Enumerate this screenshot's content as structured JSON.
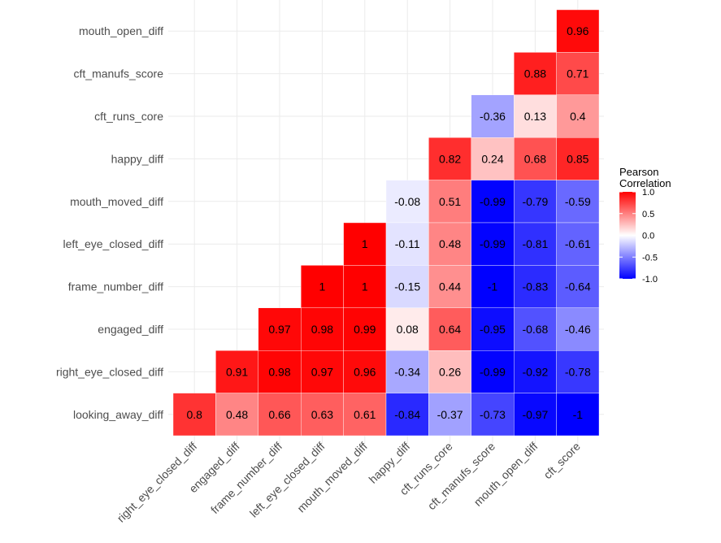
{
  "chart_data": {
    "type": "heatmap",
    "title": "",
    "xlabel": "",
    "ylabel": "",
    "x_categories": [
      "right_eye_closed_diff",
      "engaged_diff",
      "frame_number_diff",
      "left_eye_closed_diff",
      "mouth_moved_diff",
      "happy_diff",
      "cft_runs_core",
      "cft_manufs_score",
      "mouth_open_diff",
      "cft_score"
    ],
    "y_categories": [
      "mouth_open_diff",
      "cft_manufs_score",
      "cft_runs_core",
      "happy_diff",
      "mouth_moved_diff",
      "left_eye_closed_diff",
      "frame_number_diff",
      "engaged_diff",
      "right_eye_closed_diff",
      "looking_away_diff"
    ],
    "cells": [
      {
        "x": "cft_score",
        "y": "mouth_open_diff",
        "value": 0.96,
        "label": "0.96"
      },
      {
        "x": "mouth_open_diff",
        "y": "cft_manufs_score",
        "value": 0.88,
        "label": "0.88"
      },
      {
        "x": "cft_score",
        "y": "cft_manufs_score",
        "value": 0.71,
        "label": "0.71"
      },
      {
        "x": "cft_manufs_score",
        "y": "cft_runs_core",
        "value": -0.36,
        "label": "-0.36"
      },
      {
        "x": "mouth_open_diff",
        "y": "cft_runs_core",
        "value": 0.13,
        "label": "0.13"
      },
      {
        "x": "cft_score",
        "y": "cft_runs_core",
        "value": 0.4,
        "label": "0.4"
      },
      {
        "x": "cft_runs_core",
        "y": "happy_diff",
        "value": 0.82,
        "label": "0.82"
      },
      {
        "x": "cft_manufs_score",
        "y": "happy_diff",
        "value": 0.24,
        "label": "0.24"
      },
      {
        "x": "mouth_open_diff",
        "y": "happy_diff",
        "value": 0.68,
        "label": "0.68"
      },
      {
        "x": "cft_score",
        "y": "happy_diff",
        "value": 0.85,
        "label": "0.85"
      },
      {
        "x": "happy_diff",
        "y": "mouth_moved_diff",
        "value": -0.08,
        "label": "-0.08"
      },
      {
        "x": "cft_runs_core",
        "y": "mouth_moved_diff",
        "value": 0.51,
        "label": "0.51"
      },
      {
        "x": "cft_manufs_score",
        "y": "mouth_moved_diff",
        "value": -0.99,
        "label": "-0.99"
      },
      {
        "x": "mouth_open_diff",
        "y": "mouth_moved_diff",
        "value": -0.79,
        "label": "-0.79"
      },
      {
        "x": "cft_score",
        "y": "mouth_moved_diff",
        "value": -0.59,
        "label": "-0.59"
      },
      {
        "x": "mouth_moved_diff",
        "y": "left_eye_closed_diff",
        "value": 1,
        "label": "1"
      },
      {
        "x": "happy_diff",
        "y": "left_eye_closed_diff",
        "value": -0.11,
        "label": "-0.11"
      },
      {
        "x": "cft_runs_core",
        "y": "left_eye_closed_diff",
        "value": 0.48,
        "label": "0.48"
      },
      {
        "x": "cft_manufs_score",
        "y": "left_eye_closed_diff",
        "value": -0.99,
        "label": "-0.99"
      },
      {
        "x": "mouth_open_diff",
        "y": "left_eye_closed_diff",
        "value": -0.81,
        "label": "-0.81"
      },
      {
        "x": "cft_score",
        "y": "left_eye_closed_diff",
        "value": -0.61,
        "label": "-0.61"
      },
      {
        "x": "left_eye_closed_diff",
        "y": "frame_number_diff",
        "value": 1,
        "label": "1"
      },
      {
        "x": "mouth_moved_diff",
        "y": "frame_number_diff",
        "value": 1,
        "label": "1"
      },
      {
        "x": "happy_diff",
        "y": "frame_number_diff",
        "value": -0.15,
        "label": "-0.15"
      },
      {
        "x": "cft_runs_core",
        "y": "frame_number_diff",
        "value": 0.44,
        "label": "0.44"
      },
      {
        "x": "cft_manufs_score",
        "y": "frame_number_diff",
        "value": -1,
        "label": "-1"
      },
      {
        "x": "mouth_open_diff",
        "y": "frame_number_diff",
        "value": -0.83,
        "label": "-0.83"
      },
      {
        "x": "cft_score",
        "y": "frame_number_diff",
        "value": -0.64,
        "label": "-0.64"
      },
      {
        "x": "frame_number_diff",
        "y": "engaged_diff",
        "value": 0.97,
        "label": "0.97"
      },
      {
        "x": "left_eye_closed_diff",
        "y": "engaged_diff",
        "value": 0.98,
        "label": "0.98"
      },
      {
        "x": "mouth_moved_diff",
        "y": "engaged_diff",
        "value": 0.99,
        "label": "0.99"
      },
      {
        "x": "happy_diff",
        "y": "engaged_diff",
        "value": 0.08,
        "label": "0.08"
      },
      {
        "x": "cft_runs_core",
        "y": "engaged_diff",
        "value": 0.64,
        "label": "0.64"
      },
      {
        "x": "cft_manufs_score",
        "y": "engaged_diff",
        "value": -0.95,
        "label": "-0.95"
      },
      {
        "x": "mouth_open_diff",
        "y": "engaged_diff",
        "value": -0.68,
        "label": "-0.68"
      },
      {
        "x": "cft_score",
        "y": "engaged_diff",
        "value": -0.46,
        "label": "-0.46"
      },
      {
        "x": "engaged_diff",
        "y": "right_eye_closed_diff",
        "value": 0.91,
        "label": "0.91"
      },
      {
        "x": "frame_number_diff",
        "y": "right_eye_closed_diff",
        "value": 0.98,
        "label": "0.98"
      },
      {
        "x": "left_eye_closed_diff",
        "y": "right_eye_closed_diff",
        "value": 0.97,
        "label": "0.97"
      },
      {
        "x": "mouth_moved_diff",
        "y": "right_eye_closed_diff",
        "value": 0.96,
        "label": "0.96"
      },
      {
        "x": "happy_diff",
        "y": "right_eye_closed_diff",
        "value": -0.34,
        "label": "-0.34"
      },
      {
        "x": "cft_runs_core",
        "y": "right_eye_closed_diff",
        "value": 0.26,
        "label": "0.26"
      },
      {
        "x": "cft_manufs_score",
        "y": "right_eye_closed_diff",
        "value": -0.99,
        "label": "-0.99"
      },
      {
        "x": "mouth_open_diff",
        "y": "right_eye_closed_diff",
        "value": -0.92,
        "label": "-0.92"
      },
      {
        "x": "cft_score",
        "y": "right_eye_closed_diff",
        "value": -0.78,
        "label": "-0.78"
      },
      {
        "x": "right_eye_closed_diff",
        "y": "looking_away_diff",
        "value": 0.8,
        "label": "0.8"
      },
      {
        "x": "engaged_diff",
        "y": "looking_away_diff",
        "value": 0.48,
        "label": "0.48"
      },
      {
        "x": "frame_number_diff",
        "y": "looking_away_diff",
        "value": 0.66,
        "label": "0.66"
      },
      {
        "x": "left_eye_closed_diff",
        "y": "looking_away_diff",
        "value": 0.63,
        "label": "0.63"
      },
      {
        "x": "mouth_moved_diff",
        "y": "looking_away_diff",
        "value": 0.61,
        "label": "0.61"
      },
      {
        "x": "happy_diff",
        "y": "looking_away_diff",
        "value": -0.84,
        "label": "-0.84"
      },
      {
        "x": "cft_runs_core",
        "y": "looking_away_diff",
        "value": -0.37,
        "label": "-0.37"
      },
      {
        "x": "cft_manufs_score",
        "y": "looking_away_diff",
        "value": -0.73,
        "label": "-0.73"
      },
      {
        "x": "mouth_open_diff",
        "y": "looking_away_diff",
        "value": -0.97,
        "label": "-0.97"
      },
      {
        "x": "cft_score",
        "y": "looking_away_diff",
        "value": -1,
        "label": "-1"
      }
    ],
    "value_range": [
      -1,
      1
    ],
    "grid": true,
    "legend": {
      "title_lines": [
        "Pearson",
        "Correlation"
      ],
      "placement": "right",
      "ticks": [
        {
          "value": 1.0,
          "label": "1.0"
        },
        {
          "value": 0.5,
          "label": "0.5"
        },
        {
          "value": 0.0,
          "label": "0.0"
        },
        {
          "value": -0.5,
          "label": "-0.5"
        },
        {
          "value": -1.0,
          "label": "-1.0"
        }
      ]
    },
    "colors": {
      "low": "#0000ff",
      "mid": "#ffffff",
      "high": "#ff0000",
      "grid": "#ebebeb",
      "axis_text": "#4d4d4d",
      "cell_text": "#000000"
    }
  }
}
